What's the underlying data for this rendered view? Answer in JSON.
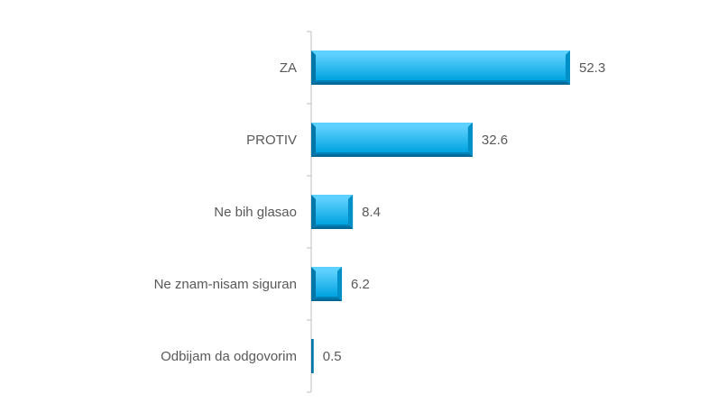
{
  "chart_data": {
    "type": "bar",
    "orientation": "horizontal",
    "categories": [
      "ZA",
      "PROTIV",
      "Ne bih glasao",
      "Ne znam-nisam siguran",
      "Odbijam da odgovorim"
    ],
    "values": [
      52.3,
      32.6,
      8.4,
      6.2,
      0.5
    ],
    "value_labels": [
      "52.3",
      "32.6",
      "8.4",
      "6.2",
      "0.5"
    ],
    "title": "",
    "xlabel": "",
    "ylabel": "",
    "xlim": [
      0,
      80
    ],
    "grid": false,
    "legend": "none",
    "colors": {
      "bar": "#00a3e0",
      "bar_light": "#5cd0ff",
      "bar_dark": "#0077a8",
      "axis": "#bfbfbf",
      "text": "#595959"
    }
  }
}
